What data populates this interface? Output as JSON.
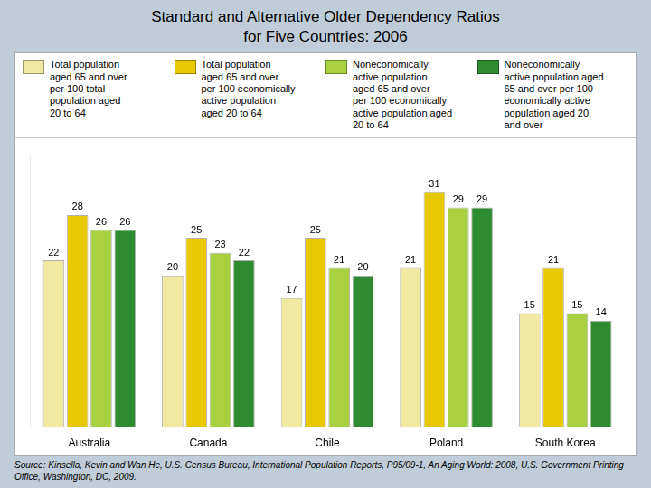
{
  "chart_data": {
    "type": "bar",
    "title": "Standard and Alternative Older Dependency Ratios\nfor Five Countries: 2006",
    "categories": [
      "Australia",
      "Canada",
      "Chile",
      "Poland",
      "South Korea"
    ],
    "series": [
      {
        "name": "Total population\naged 65 and over\nper 100 total\npopulation aged\n20 to 64",
        "color": "#F0EAA0",
        "values": [
          22,
          20,
          17,
          21,
          15
        ]
      },
      {
        "name": "Total population\naged 65 and over\nper 100 economically\nactive population\naged 20 to 64",
        "color": "#E8C800",
        "values": [
          28,
          25,
          25,
          31,
          21
        ]
      },
      {
        "name": "Noneconomically\nactive population\naged 65 and over\nper 100 economically\nactive population aged\n20 to 64",
        "color": "#A8D040",
        "values": [
          26,
          23,
          21,
          29,
          15
        ]
      },
      {
        "name": "Noneconomically\nactive population aged\n65 and over per 100\neconomically active\npopulation aged 20\nand over",
        "color": "#2E8B30",
        "values": [
          26,
          22,
          20,
          29,
          14
        ]
      }
    ],
    "footnote": "Source: Kinsella, Kevin and Wan He, U.S. Census Bureau, International Population Reports, P95/09-1, An Aging World: 2008, U.S. Government Printing Office, Washington, DC, 2009.",
    "ylim": [
      0,
      36
    ],
    "grid": false,
    "legend": "top",
    "data_labels": true,
    "tick_labels": "x"
  }
}
